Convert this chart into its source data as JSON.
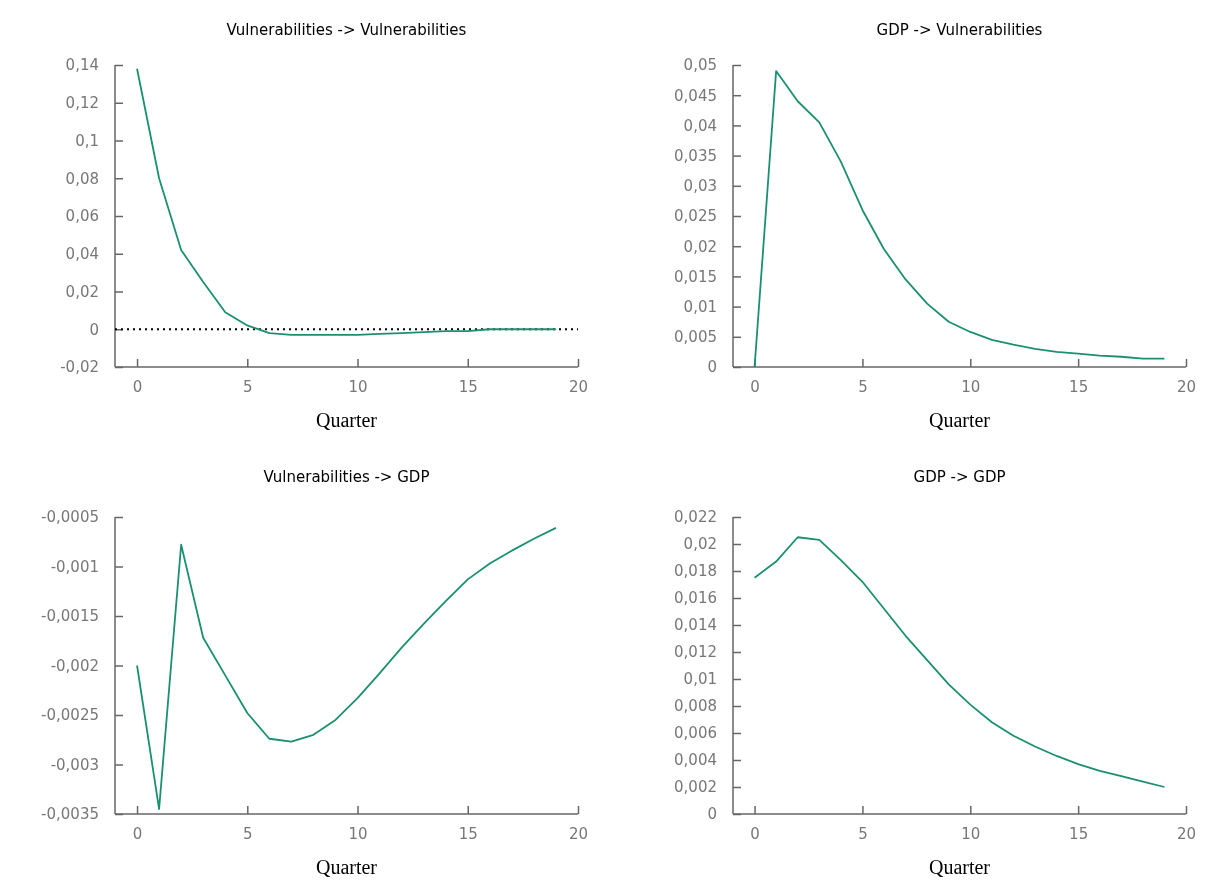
{
  "chart_data": [
    {
      "type": "line",
      "title": "Vulnerabilities -> Vulnerabilities",
      "xlabel": "Quarter",
      "x": [
        0,
        1,
        2,
        3,
        4,
        5,
        6,
        7,
        8,
        9,
        10,
        11,
        12,
        13,
        14,
        15,
        16,
        17,
        18,
        19
      ],
      "series": [
        {
          "color": "#1a9070",
          "values": [
            0.138,
            0.08,
            0.042,
            0.025,
            0.009,
            0.002,
            -0.002,
            -0.003,
            -0.003,
            -0.003,
            -0.003,
            -0.0025,
            -0.002,
            -0.0015,
            -0.001,
            -0.001,
            0,
            0,
            0,
            0
          ]
        }
      ],
      "xlim": [
        -1,
        20
      ],
      "xticks": [
        0,
        5,
        10,
        15,
        20
      ],
      "ylim": [
        -0.02,
        0.14
      ],
      "yticks": [
        {
          "value": -0.02,
          "label": "-0,02"
        },
        {
          "value": 0,
          "label": "0"
        },
        {
          "value": 0.02,
          "label": "0,02"
        },
        {
          "value": 0.04,
          "label": "0,04"
        },
        {
          "value": 0.06,
          "label": "0,06"
        },
        {
          "value": 0.08,
          "label": "0,08"
        },
        {
          "value": 0.1,
          "label": "0,1"
        },
        {
          "value": 0.12,
          "label": "0,12"
        },
        {
          "value": 0.14,
          "label": "0,14"
        }
      ],
      "ref_lines": [
        {
          "axis": "y",
          "value": 0,
          "color": "#000000",
          "line_style": "dotted"
        }
      ]
    },
    {
      "type": "line",
      "title": "GDP -> Vulnerabilities",
      "xlabel": "Quarter",
      "x": [
        0,
        1,
        2,
        3,
        4,
        5,
        6,
        7,
        8,
        9,
        10,
        11,
        12,
        13,
        14,
        15,
        16,
        17,
        18,
        19
      ],
      "series": [
        {
          "color": "#1a9070",
          "values": [
            0,
            0.049,
            0.044,
            0.0405,
            0.034,
            0.026,
            0.0195,
            0.0145,
            0.0105,
            0.0075,
            0.0058,
            0.0045,
            0.0037,
            0.003,
            0.0025,
            0.0022,
            0.0019,
            0.0017,
            0.0014,
            0.0014
          ]
        }
      ],
      "xlim": [
        -1,
        20
      ],
      "xticks": [
        0,
        5,
        10,
        15,
        20
      ],
      "ylim": [
        0,
        0.05
      ],
      "yticks": [
        0,
        {
          "value": 0.005,
          "label": "0,005"
        },
        {
          "value": 0.01,
          "label": "0,01"
        },
        {
          "value": 0.015,
          "label": "0,015"
        },
        {
          "value": 0.02,
          "label": "0,02"
        },
        {
          "value": 0.025,
          "label": "0,025"
        },
        {
          "value": 0.03,
          "label": "0,03"
        },
        {
          "value": 0.035,
          "label": "0,035"
        },
        {
          "value": 0.04,
          "label": "0,04"
        },
        {
          "value": 0.045,
          "label": "0,045"
        },
        {
          "value": 0.05,
          "label": "0,05"
        }
      ]
    },
    {
      "type": "line",
      "title": "Vulnerabilities -> GDP",
      "xlabel": "Quarter",
      "x": [
        0,
        1,
        2,
        3,
        4,
        5,
        6,
        7,
        8,
        9,
        10,
        11,
        12,
        13,
        14,
        15,
        16,
        17,
        18,
        19
      ],
      "series": [
        {
          "color": "#1a9070",
          "values": [
            -0.002,
            -0.00345,
            -0.00078,
            -0.00172,
            -0.0021,
            -0.00248,
            -0.00274,
            -0.00277,
            -0.0027,
            -0.00255,
            -0.00233,
            -0.00208,
            -0.00182,
            -0.00158,
            -0.00135,
            -0.00113,
            -0.00097,
            -0.00084,
            -0.00072,
            -0.00061
          ]
        }
      ],
      "xlim": [
        -1,
        20
      ],
      "xticks": [
        0,
        5,
        10,
        15,
        20
      ],
      "ylim": [
        -0.0035,
        -0.0005
      ],
      "yticks": [
        {
          "value": -0.0035,
          "label": "-0,0035"
        },
        {
          "value": -0.003,
          "label": "-0,003"
        },
        {
          "value": -0.0025,
          "label": "-0,0025"
        },
        {
          "value": -0.002,
          "label": "-0,002"
        },
        {
          "value": -0.0015,
          "label": "-0,0015"
        },
        {
          "value": -0.001,
          "label": "-0,001"
        },
        {
          "value": -0.0005,
          "label": "-0,0005"
        }
      ]
    },
    {
      "type": "line",
      "title": "GDP -> GDP",
      "xlabel": "Quarter",
      "x": [
        0,
        1,
        2,
        3,
        4,
        5,
        6,
        7,
        8,
        9,
        10,
        11,
        12,
        13,
        14,
        15,
        16,
        17,
        18,
        19
      ],
      "series": [
        {
          "color": "#1a9070",
          "values": [
            0.0175,
            0.0187,
            0.0205,
            0.0203,
            0.0188,
            0.0172,
            0.0152,
            0.0132,
            0.0114,
            0.0096,
            0.0081,
            0.0068,
            0.0058,
            0.005,
            0.0043,
            0.0037,
            0.0032,
            0.0028,
            0.0024,
            0.002
          ]
        }
      ],
      "xlim": [
        -1,
        20
      ],
      "xticks": [
        0,
        5,
        10,
        15,
        20
      ],
      "ylim": [
        0,
        0.022
      ],
      "yticks": [
        0,
        {
          "value": 0.002,
          "label": "0,002"
        },
        {
          "value": 0.004,
          "label": "0,004"
        },
        {
          "value": 0.006,
          "label": "0,006"
        },
        {
          "value": 0.008,
          "label": "0,008"
        },
        {
          "value": 0.01,
          "label": "0,01"
        },
        {
          "value": 0.012,
          "label": "0,012"
        },
        {
          "value": 0.014,
          "label": "0,014"
        },
        {
          "value": 0.016,
          "label": "0,016"
        },
        {
          "value": 0.018,
          "label": "0,018"
        },
        {
          "value": 0.02,
          "label": "0,02"
        },
        {
          "value": 0.022,
          "label": "0,022"
        }
      ]
    }
  ]
}
